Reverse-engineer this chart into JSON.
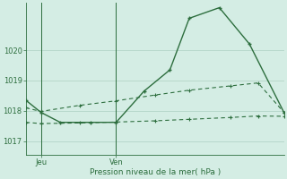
{
  "background_color": "#d4ede4",
  "grid_color": "#b8d8cc",
  "line_color": "#2d6e3e",
  "text_color": "#2d6e3e",
  "axis_color": "#2d6e3e",
  "xlabel": "Pression niveau de la mer( hPa )",
  "yticks": [
    1017,
    1018,
    1019,
    1020
  ],
  "xlim": [
    0,
    12
  ],
  "ylim": [
    1016.55,
    1021.55
  ],
  "xtick_positions": [
    0.7,
    4.2
  ],
  "xtick_labels": [
    "Jeu",
    "Ven"
  ],
  "vline_positions": [
    0.7,
    4.2
  ],
  "line1_x": [
    0.0,
    0.7,
    1.6,
    3.0,
    4.2,
    5.5,
    6.7,
    7.6,
    9.0,
    10.4,
    12.0
  ],
  "line1_y": [
    1018.35,
    1017.95,
    1017.62,
    1017.62,
    1017.62,
    1018.65,
    1019.35,
    1021.05,
    1021.4,
    1020.2,
    1017.95
  ],
  "line2_x": [
    0.0,
    0.7,
    2.5,
    4.2,
    6.0,
    7.6,
    9.5,
    10.8,
    12.0
  ],
  "line2_y": [
    1018.1,
    1017.98,
    1018.18,
    1018.33,
    1018.52,
    1018.68,
    1018.82,
    1018.92,
    1017.95
  ],
  "line3_x": [
    0.0,
    0.7,
    2.5,
    4.2,
    6.0,
    7.6,
    9.5,
    10.8,
    12.0
  ],
  "line3_y": [
    1017.62,
    1017.58,
    1017.6,
    1017.63,
    1017.67,
    1017.72,
    1017.78,
    1017.83,
    1017.82
  ]
}
